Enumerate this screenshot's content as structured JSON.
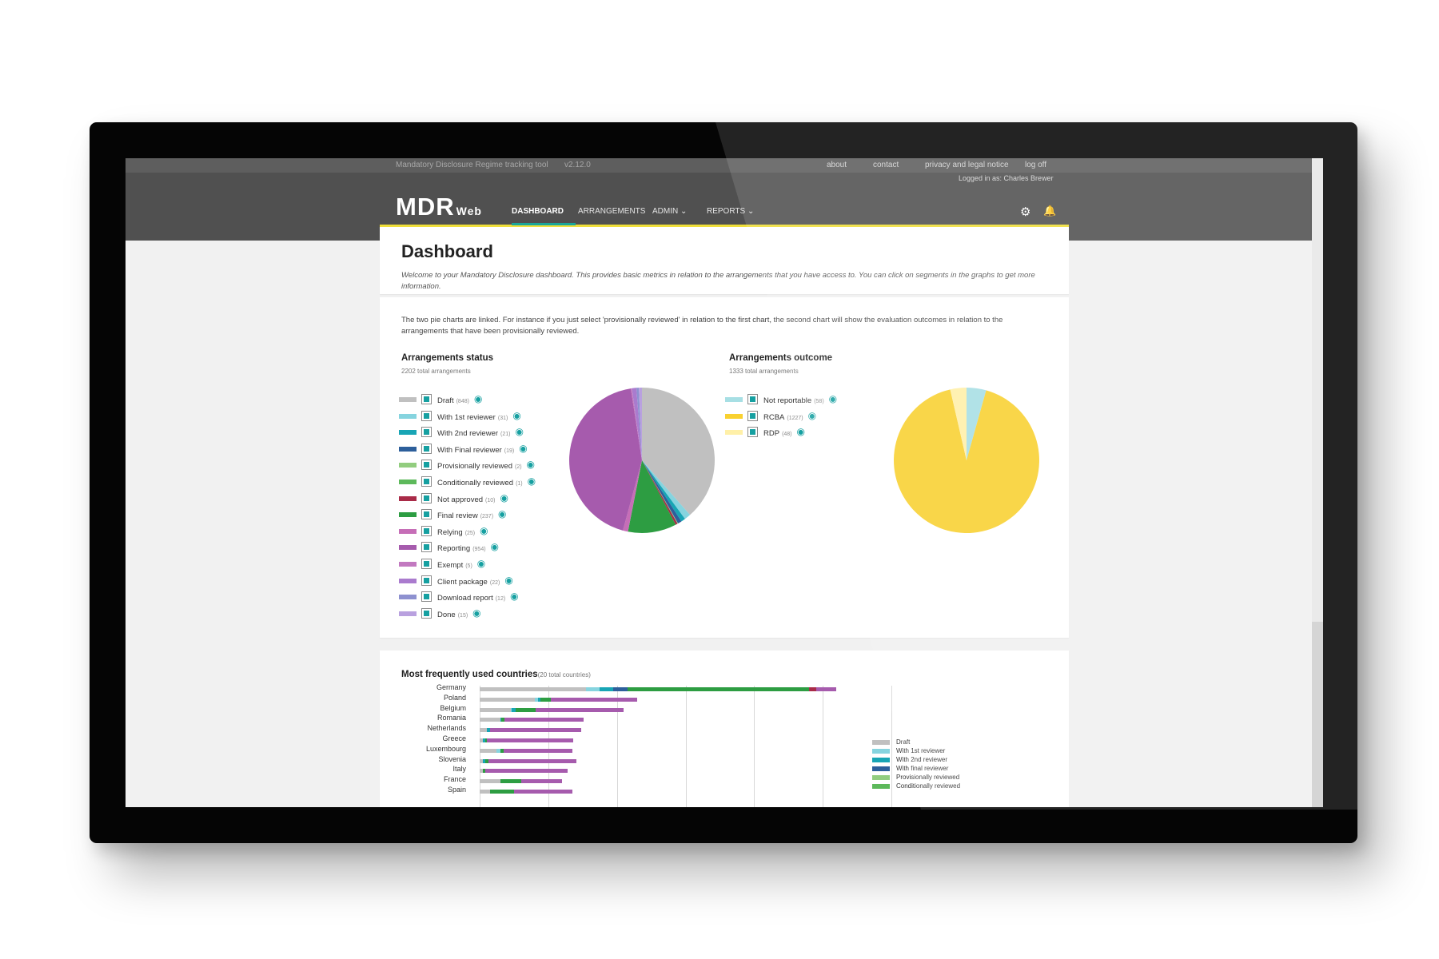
{
  "topbar": {
    "tool_title": "Mandatory Disclosure Regime tracking tool",
    "version": "v2.12.0",
    "links": [
      "about",
      "contact",
      "privacy and legal notice",
      "log off"
    ],
    "logged_in": "Logged in as: Charles Brewer"
  },
  "header": {
    "logo_main": "MDR",
    "logo_sub": "Web",
    "nav": [
      "DASHBOARD",
      "ARRANGEMENTS",
      "ADMIN",
      "REPORTS"
    ],
    "admin_arrow": "⌄",
    "reports_arrow": "⌄",
    "settings_icon": "gear-icon",
    "notification_icon": "bell-icon"
  },
  "dashboard": {
    "title": "Dashboard",
    "intro": "Welcome to your Mandatory Disclosure dashboard. This provides basic metrics in relation to the arrangements that you have access to. You can click on segments in the graphs to get more information.",
    "charts_intro": "The two pie charts are linked. For instance if you just select 'provisionally reviewed' in relation to the first chart, the second chart will show the evaluation outcomes in relation to the arrangements that have been provisionally reviewed."
  },
  "status": {
    "title": "Arrangements status",
    "subtitle": "2202 total arrangements",
    "items": [
      {
        "label": "Draft",
        "count": "(848)",
        "color": "#c0c0c0"
      },
      {
        "label": "With 1st reviewer",
        "count": "(31)",
        "color": "#86d4df"
      },
      {
        "label": "With 2nd reviewer",
        "count": "(21)",
        "color": "#18a5b5"
      },
      {
        "label": "With Final reviewer",
        "count": "(19)",
        "color": "#2d5f9b"
      },
      {
        "label": "Provisionally reviewed",
        "count": "(2)",
        "color": "#92cd7f"
      },
      {
        "label": "Conditionally reviewed",
        "count": "(1)",
        "color": "#5db95b"
      },
      {
        "label": "Not approved",
        "count": "(10)",
        "color": "#a92b48"
      },
      {
        "label": "Final review",
        "count": "(237)",
        "color": "#2d9d42"
      },
      {
        "label": "Relying",
        "count": "(25)",
        "color": "#c66eb7"
      },
      {
        "label": "Reporting",
        "count": "(954)",
        "color": "#a65bad"
      },
      {
        "label": "Exempt",
        "count": "(5)",
        "color": "#c279c0"
      },
      {
        "label": "Client package",
        "count": "(22)",
        "color": "#aa7bce"
      },
      {
        "label": "Download report",
        "count": "(12)",
        "color": "#8e91d0"
      },
      {
        "label": "Done",
        "count": "(15)",
        "color": "#b9a1df"
      }
    ]
  },
  "outcome": {
    "title": "Arrangements outcome",
    "subtitle": "1333 total arrangements",
    "items": [
      {
        "label": "Not reportable",
        "count": "(58)",
        "color": "#a7dfe4"
      },
      {
        "label": "RCBA",
        "count": "(1227)",
        "color": "#f9d130"
      },
      {
        "label": "RDP",
        "count": "(48)",
        "color": "#fff0a8"
      }
    ]
  },
  "countries": {
    "title": "Most frequently used countries",
    "subtitle": "(20 total countries)",
    "legend": [
      {
        "label": "Draft",
        "color": "#c0c0c0"
      },
      {
        "label": "With 1st reviewer",
        "color": "#86d4df"
      },
      {
        "label": "With 2nd reviewer",
        "color": "#18a5b5"
      },
      {
        "label": "With final reviewer",
        "color": "#2d5f9b"
      },
      {
        "label": "Provisionally reviewed",
        "color": "#92cd7f"
      },
      {
        "label": "Conditionally reviewed",
        "color": "#5db95b"
      }
    ]
  },
  "chart_data": [
    {
      "type": "pie",
      "title": "Arrangements status",
      "categories": [
        "Draft",
        "With 1st reviewer",
        "With 2nd reviewer",
        "With Final reviewer",
        "Provisionally reviewed",
        "Conditionally reviewed",
        "Not approved",
        "Final review",
        "Relying",
        "Reporting",
        "Exempt",
        "Client package",
        "Download report",
        "Done"
      ],
      "values": [
        848,
        31,
        21,
        19,
        2,
        1,
        10,
        237,
        25,
        954,
        5,
        22,
        12,
        15
      ],
      "colors": [
        "#c0c0c0",
        "#86d4df",
        "#18a5b5",
        "#2d5f9b",
        "#92cd7f",
        "#5db95b",
        "#a92b48",
        "#2d9d42",
        "#c66eb7",
        "#a65bad",
        "#c279c0",
        "#aa7bce",
        "#8e91d0",
        "#b9a1df"
      ]
    },
    {
      "type": "pie",
      "title": "Arrangements outcome",
      "categories": [
        "Not reportable",
        "RCBA",
        "RDP"
      ],
      "values": [
        58,
        1227,
        48
      ],
      "colors": [
        "#a7dfe4",
        "#f9d130",
        "#fff0a8"
      ]
    },
    {
      "type": "bar",
      "title": "Most frequently used countries",
      "categories": [
        "Germany",
        "Poland",
        "Belgium",
        "Romania",
        "Netherlands",
        "Greece",
        "Luxembourg",
        "Slovenia",
        "Italy",
        "France",
        "Spain"
      ],
      "series": [
        {
          "name": "Draft",
          "values": [
            155,
            80,
            45,
            30,
            10,
            5,
            25,
            5,
            5,
            30,
            15
          ],
          "color": "#c0c0c0"
        },
        {
          "name": "With 1st reviewer",
          "values": [
            20,
            5,
            2,
            0,
            0,
            0,
            5,
            0,
            0,
            0,
            0
          ],
          "color": "#86d4df"
        },
        {
          "name": "With 2nd reviewer",
          "values": [
            20,
            4,
            5,
            2,
            5,
            3,
            0,
            3,
            0,
            0,
            0
          ],
          "color": "#18a5b5"
        },
        {
          "name": "With final reviewer",
          "values": [
            20,
            0,
            0,
            0,
            0,
            0,
            0,
            0,
            0,
            0,
            0
          ],
          "color": "#2d5f9b"
        },
        {
          "name": "Provisionally reviewed",
          "values": [
            0,
            0,
            0,
            0,
            0,
            0,
            0,
            0,
            0,
            0,
            0
          ],
          "color": "#92cd7f"
        },
        {
          "name": "Conditionally reviewed",
          "values": [
            0,
            0,
            0,
            0,
            0,
            0,
            0,
            0,
            0,
            0,
            0
          ],
          "color": "#5db95b"
        },
        {
          "name": "",
          "values": [
            265,
            15,
            30,
            4,
            0,
            3,
            5,
            5,
            3,
            30,
            35
          ],
          "color": "#2d9d42"
        },
        {
          "name": "",
          "values": [
            10,
            0,
            0,
            0,
            0,
            0,
            0,
            0,
            0,
            0,
            0
          ],
          "color": "#a92b48"
        },
        {
          "name": "",
          "values": [
            30,
            125,
            128,
            115,
            133,
            125,
            100,
            128,
            120,
            60,
            85
          ],
          "color": "#a65bad"
        }
      ],
      "xlim": [
        0,
        600
      ]
    }
  ]
}
